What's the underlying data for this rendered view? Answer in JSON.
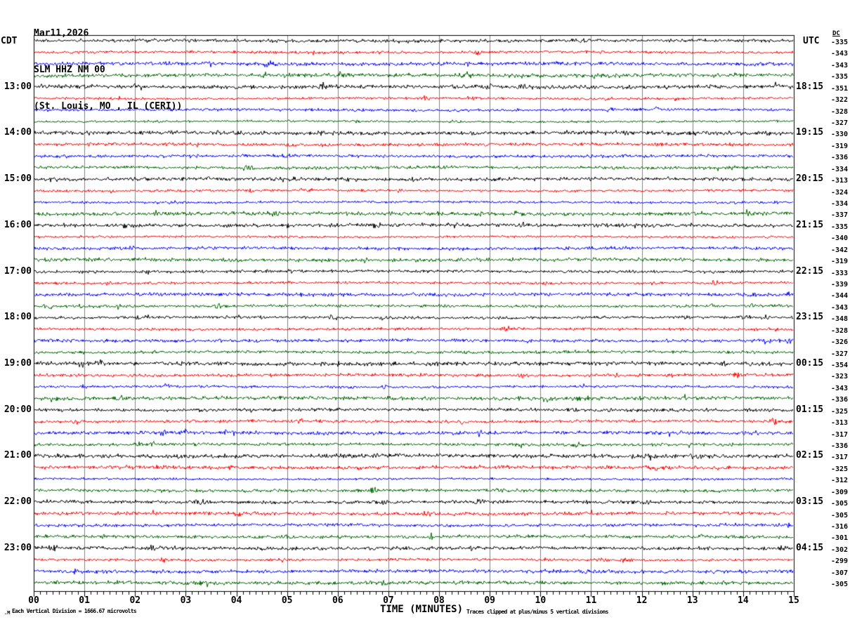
{
  "chart_data": {
    "type": "line",
    "variant": "helicorder_seismogram",
    "header": {
      "date": "Mar11,2026",
      "station": "SLM HHZ NM 00",
      "location": "(St. Louis, MO , IL (CERI))"
    },
    "xlabel": "TIME (MINUTES)",
    "x_range_minutes": [
      0,
      15
    ],
    "x_tick_labels": [
      "00",
      "01",
      "02",
      "03",
      "04",
      "05",
      "06",
      "07",
      "08",
      "09",
      "10",
      "11",
      "12",
      "13",
      "14",
      "15"
    ],
    "minutes_per_trace_row": 15,
    "num_rows": 48,
    "trace_color_cycle": [
      "#000000",
      "#ff0000",
      "#0000ff",
      "#006400"
    ],
    "grid_color": "#808080",
    "left_time_axis": {
      "timezone": "CDT",
      "labels": [
        {
          "row": 4,
          "time": "13:00"
        },
        {
          "row": 8,
          "time": "14:00"
        },
        {
          "row": 12,
          "time": "15:00"
        },
        {
          "row": 16,
          "time": "16:00"
        },
        {
          "row": 20,
          "time": "17:00"
        },
        {
          "row": 24,
          "time": "18:00"
        },
        {
          "row": 28,
          "time": "19:00"
        },
        {
          "row": 32,
          "time": "20:00"
        },
        {
          "row": 36,
          "time": "21:00"
        },
        {
          "row": 40,
          "time": "22:00"
        },
        {
          "row": 44,
          "time": "23:00"
        }
      ]
    },
    "right_time_axis": {
      "timezone": "UTC",
      "labels": [
        {
          "row": 4,
          "time": "18:15"
        },
        {
          "row": 8,
          "time": "19:15"
        },
        {
          "row": 12,
          "time": "20:15"
        },
        {
          "row": 16,
          "time": "21:15"
        },
        {
          "row": 20,
          "time": "22:15"
        },
        {
          "row": 24,
          "time": "23:15"
        },
        {
          "row": 28,
          "time": "00:15"
        },
        {
          "row": 32,
          "time": "01:15"
        },
        {
          "row": 36,
          "time": "02:15"
        },
        {
          "row": 40,
          "time": "03:15"
        },
        {
          "row": 44,
          "time": "04:15"
        }
      ]
    },
    "dc_offsets": {
      "header": "DC",
      "values": [
        -335,
        -343,
        -343,
        -335,
        -351,
        -322,
        -328,
        -327,
        -330,
        -319,
        -336,
        -334,
        -313,
        -324,
        -334,
        -337,
        -335,
        -340,
        -342,
        -319,
        -333,
        -339,
        -344,
        -343,
        -348,
        -328,
        -326,
        -327,
        -354,
        -323,
        -343,
        -336,
        -325,
        -313,
        -317,
        -336,
        -317,
        -325,
        -312,
        -309,
        -305,
        -305,
        -316,
        -301,
        -302,
        -299,
        -307,
        -305
      ]
    },
    "notes": {
      "scale": "Each Vertical Division = 1666.67 microvolts",
      "clip": "Traces clipped at plus/minus 5 vertical divisions"
    },
    "watermark": ".M"
  }
}
